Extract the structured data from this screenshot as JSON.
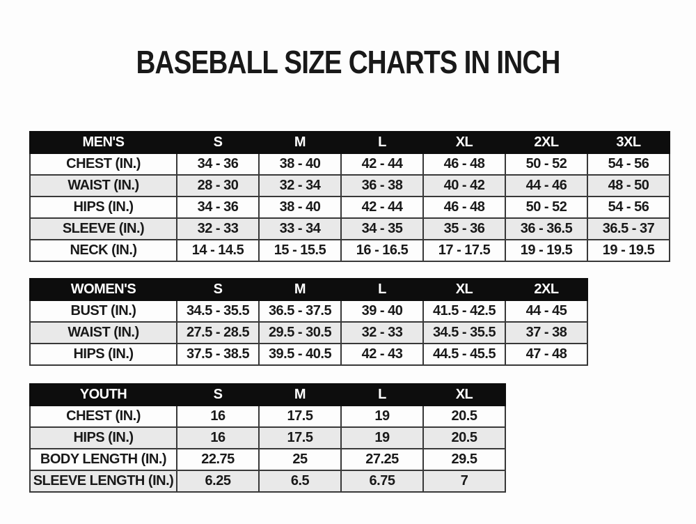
{
  "page": {
    "title": "BASEBALL SIZE CHARTS IN INCH"
  },
  "colors": {
    "page_bg": "#fdfdfd",
    "header_bg": "#0d0d0d",
    "header_text": "#ffffff",
    "row_bg": "#fdfdfd",
    "row_alt_bg": "#e9e9e9",
    "border": "#383838",
    "text": "#191919"
  },
  "chart_data": [
    {
      "type": "table",
      "name": "mens-size-chart",
      "header": [
        "MEN'S",
        "S",
        "M",
        "L",
        "XL",
        "2XL",
        "3XL"
      ],
      "rows": [
        [
          "CHEST (IN.)",
          "34 - 36",
          "38 - 40",
          "42 - 44",
          "46 - 48",
          "50 - 52",
          "54 - 56"
        ],
        [
          "WAIST (IN.)",
          "28 - 30",
          "32 - 34",
          "36 - 38",
          "40 - 42",
          "44 - 46",
          "48 - 50"
        ],
        [
          "HIPS (IN.)",
          "34 - 36",
          "38 - 40",
          "42 - 44",
          "46 - 48",
          "50 - 52",
          "54 - 56"
        ],
        [
          "SLEEVE (IN.)",
          "32 - 33",
          "33 - 34",
          "34 - 35",
          "35 - 36",
          "36 - 36.5",
          "36.5 - 37"
        ],
        [
          "NECK (IN.)",
          "14 - 14.5",
          "15 - 15.5",
          "16 - 16.5",
          "17 - 17.5",
          "19 - 19.5",
          "19 - 19.5"
        ]
      ]
    },
    {
      "type": "table",
      "name": "womens-size-chart",
      "header": [
        "WOMEN'S",
        "S",
        "M",
        "L",
        "XL",
        "2XL"
      ],
      "rows": [
        [
          "BUST (IN.)",
          "34.5 - 35.5",
          "36.5 - 37.5",
          "39 - 40",
          "41.5 - 42.5",
          "44 - 45"
        ],
        [
          "WAIST (IN.)",
          "27.5 - 28.5",
          "29.5 - 30.5",
          "32 - 33",
          "34.5 - 35.5",
          "37 - 38"
        ],
        [
          "HIPS (IN.)",
          "37.5 - 38.5",
          "39.5 - 40.5",
          "42 - 43",
          "44.5 - 45.5",
          "47 - 48"
        ]
      ]
    },
    {
      "type": "table",
      "name": "youth-size-chart",
      "header": [
        "YOUTH",
        "S",
        "M",
        "L",
        "XL"
      ],
      "rows": [
        [
          "CHEST (IN.)",
          "16",
          "17.5",
          "19",
          "20.5"
        ],
        [
          "HIPS (IN.)",
          "16",
          "17.5",
          "19",
          "20.5"
        ],
        [
          "BODY LENGTH (IN.)",
          "22.75",
          "25",
          "27.25",
          "29.5"
        ],
        [
          "SLEEVE LENGTH (IN.)",
          "6.25",
          "6.5",
          "6.75",
          "7"
        ]
      ]
    }
  ]
}
